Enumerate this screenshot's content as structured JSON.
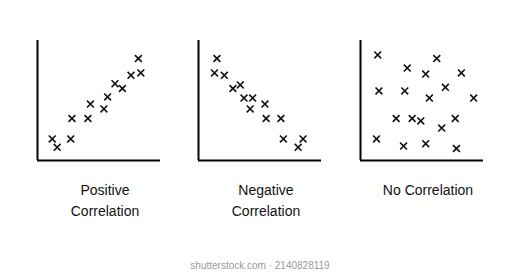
{
  "chart_data": [
    {
      "type": "scatter",
      "title": "Positive Correlation",
      "color": "#111111",
      "marker": "x",
      "tick_labels": false,
      "xlim": [
        0,
        10
      ],
      "ylim": [
        0,
        10
      ],
      "x": [
        1.2,
        1.6,
        2.7,
        2.8,
        4.1,
        4.3,
        5.4,
        5.7,
        6.3,
        6.9,
        7.6,
        8.2,
        8.4
      ],
      "values": [
        1.8,
        1.1,
        1.8,
        3.5,
        3.5,
        4.7,
        4.3,
        5.3,
        6.4,
        6.0,
        7.1,
        8.5,
        7.3
      ]
    },
    {
      "type": "scatter",
      "title": "Negative Correlation",
      "color": "#111111",
      "marker": "x",
      "tick_labels": false,
      "xlim": [
        0,
        10
      ],
      "ylim": [
        0,
        10
      ],
      "x": [
        1.5,
        1.3,
        2.1,
        2.8,
        3.4,
        3.7,
        4.2,
        4.4,
        5.4,
        5.5,
        6.7,
        6.9,
        8.1,
        8.5
      ],
      "values": [
        8.5,
        7.3,
        7.1,
        6.0,
        6.3,
        5.2,
        4.3,
        5.2,
        4.7,
        3.5,
        3.5,
        1.8,
        1.1,
        1.8
      ]
    },
    {
      "type": "scatter",
      "title": "No Correlation",
      "color": "#111111",
      "marker": "x",
      "tick_labels": false,
      "xlim": [
        0,
        10
      ],
      "ylim": [
        0,
        10
      ],
      "x": [
        1.4,
        3.8,
        6.2,
        5.3,
        8.2,
        1.5,
        3.6,
        6.9,
        5.6,
        9.2,
        4.2,
        2.9,
        4.9,
        7.7,
        6.6,
        1.3,
        3.5,
        5.3,
        7.8
      ],
      "values": [
        8.8,
        7.7,
        8.5,
        7.2,
        7.3,
        5.8,
        5.8,
        6.1,
        5.2,
        5.2,
        3.5,
        3.5,
        3.3,
        3.5,
        2.7,
        1.8,
        1.2,
        1.4,
        1.0
      ]
    }
  ],
  "footer": "shutterstock.com · 2140828119"
}
